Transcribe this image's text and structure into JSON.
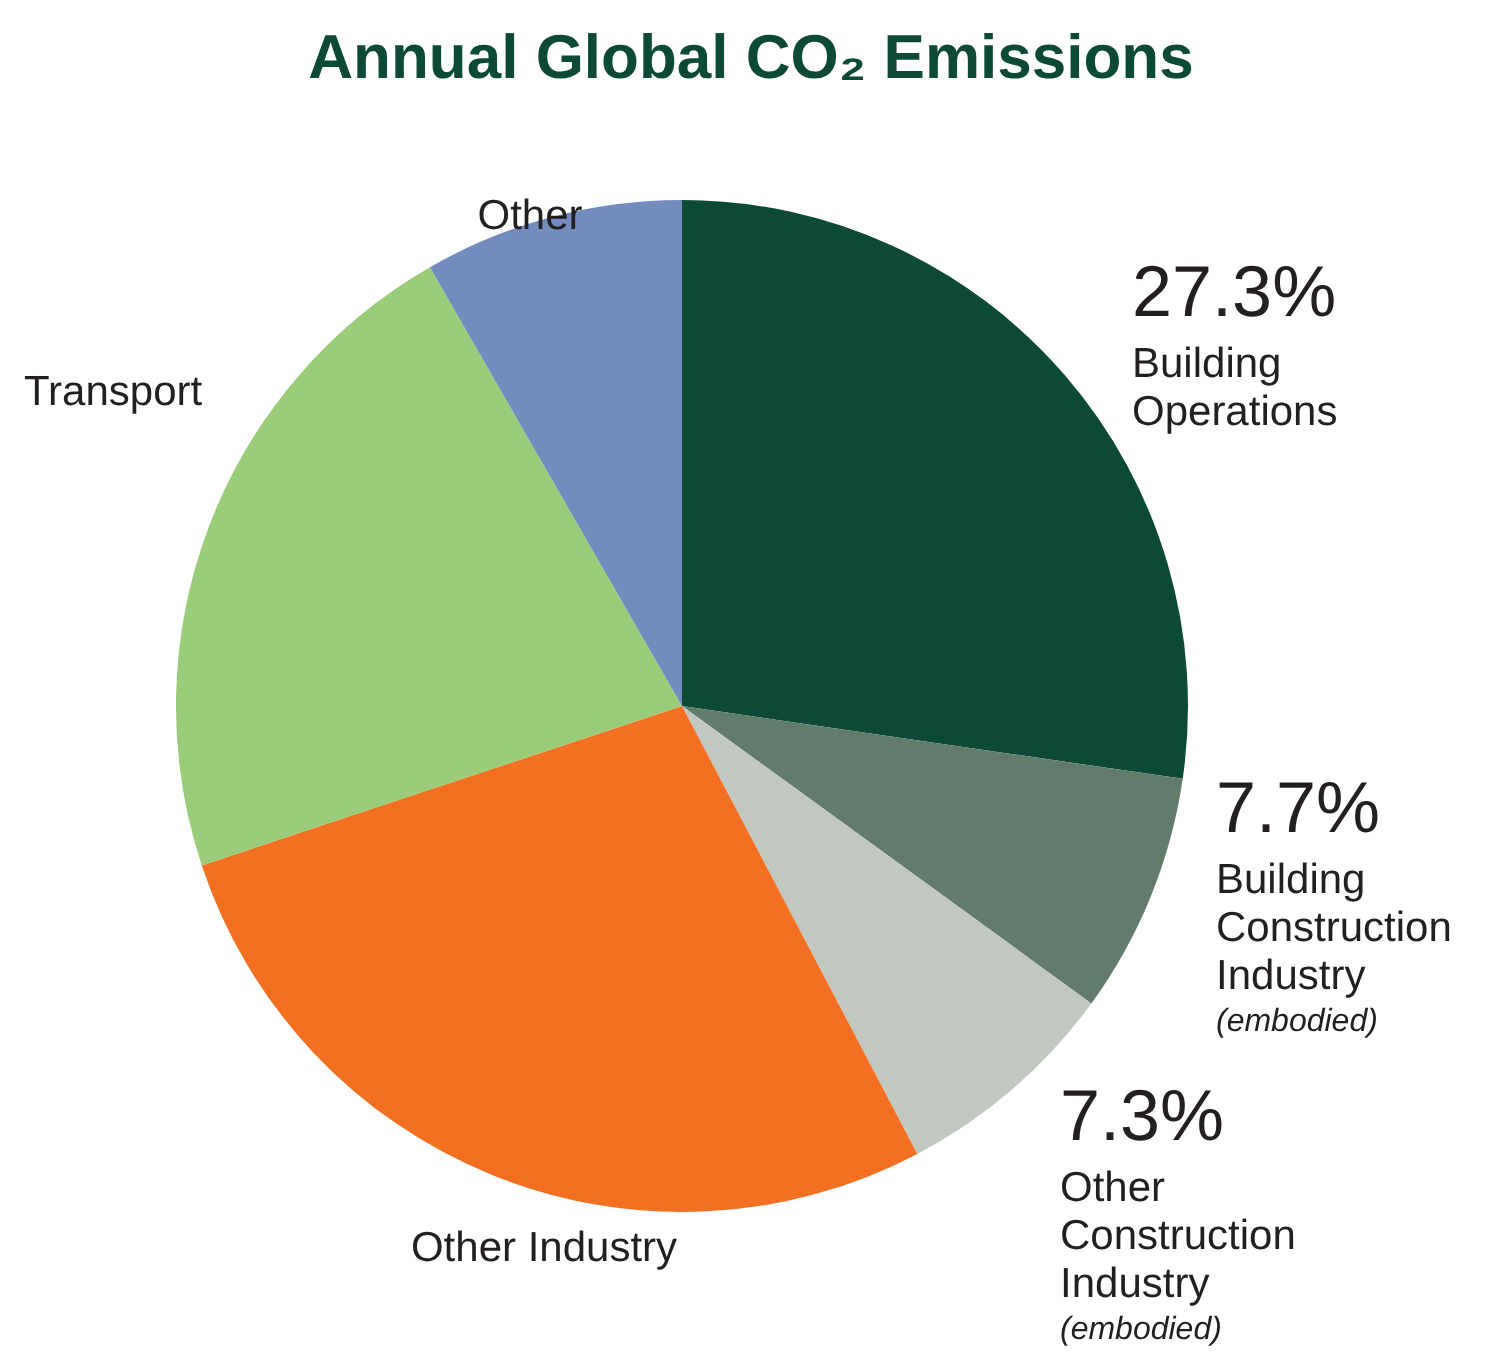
{
  "chart_data": {
    "type": "pie",
    "title": "Annual Global CO₂ Emissions",
    "categories": [
      "Building Operations",
      "Building Construction Industry (embodied)",
      "Other Construction Industry (embodied)",
      "Other Industry",
      "Transport",
      "Other"
    ],
    "values": [
      27.3,
      7.7,
      7.3,
      27.6,
      21.8,
      8.3
    ],
    "value_labels": [
      "27.3%",
      "7.7%",
      "7.3%",
      null,
      null,
      null
    ],
    "colors": [
      "#0c4a36",
      "#627b6d",
      "#c0c8c0",
      "#f36f21",
      "#9bcc7a",
      "#748bbd"
    ],
    "legend": false
  }
}
